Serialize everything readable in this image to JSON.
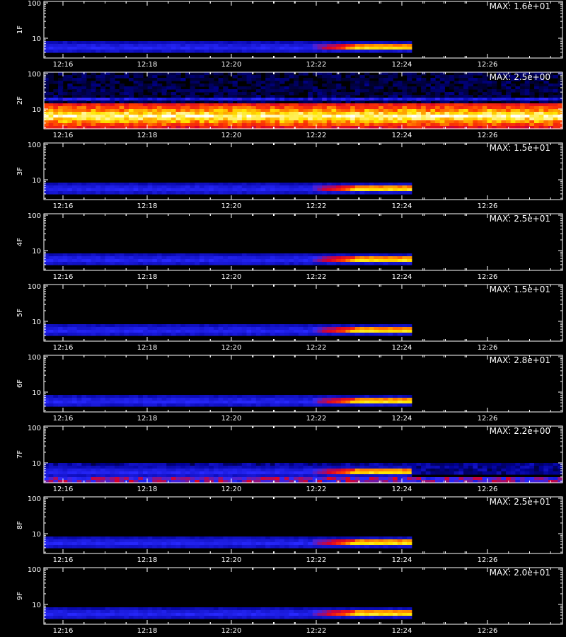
{
  "chart_data": {
    "type": "heatmap",
    "colormap": "black-blue-red-yellow-white",
    "x_tick_labels": [
      "12:16",
      "12:18",
      "12:20",
      "12:22",
      "12:24",
      "12:26"
    ],
    "y_tick_labels": [
      "100",
      "10"
    ],
    "y_scale": "log",
    "panels": [
      {
        "label": "1F",
        "max_label": "MAX: 1.6e+01",
        "kind": "burst"
      },
      {
        "label": "2F",
        "max_label": "MAX: 2.5e+00",
        "kind": "band"
      },
      {
        "label": "3F",
        "max_label": "MAX: 1.5e+01",
        "kind": "burst"
      },
      {
        "label": "4F",
        "max_label": "MAX: 2.5e+01",
        "kind": "burst"
      },
      {
        "label": "5F",
        "max_label": "MAX: 1.5e+01",
        "kind": "burst"
      },
      {
        "label": "6F",
        "max_label": "MAX: 2.8e+01",
        "kind": "burst"
      },
      {
        "label": "7F",
        "max_label": "MAX: 2.2e+00",
        "kind": "noisy"
      },
      {
        "label": "8F",
        "max_label": "MAX: 2.5e+01",
        "kind": "burst"
      },
      {
        "label": "9F",
        "max_label": "MAX: 2.0e+01",
        "kind": "burst"
      }
    ]
  }
}
